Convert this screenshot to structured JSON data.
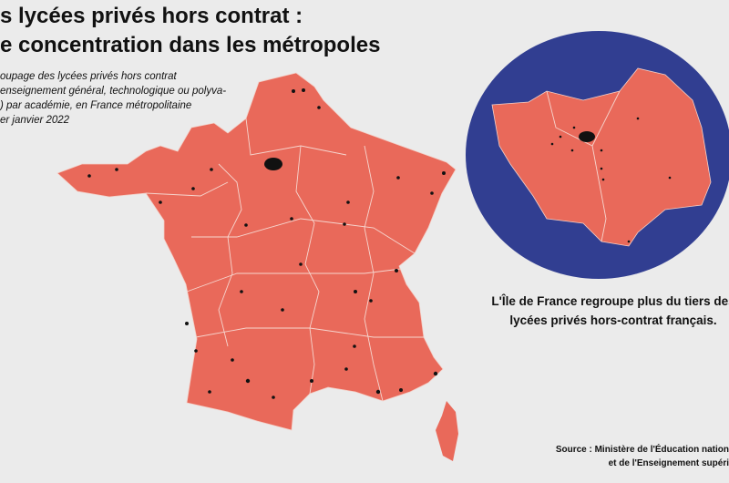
{
  "title": [
    "s lycées privés hors contrat :",
    "e concentration dans les métropoles"
  ],
  "subtitle": [
    "oupage des lycées privés hors contrat",
    "enseignement général, technologique ou polyva-",
    ") par académie, en France métropolitaine",
    "er janvier 2022"
  ],
  "annotation": [
    "L'Île de France regroupe plus du tiers des",
    "lycées privés hors-contrat français."
  ],
  "source": [
    "Source : Ministère de l'Éducation nation",
    "et de l'Enseignement supéri"
  ]
}
